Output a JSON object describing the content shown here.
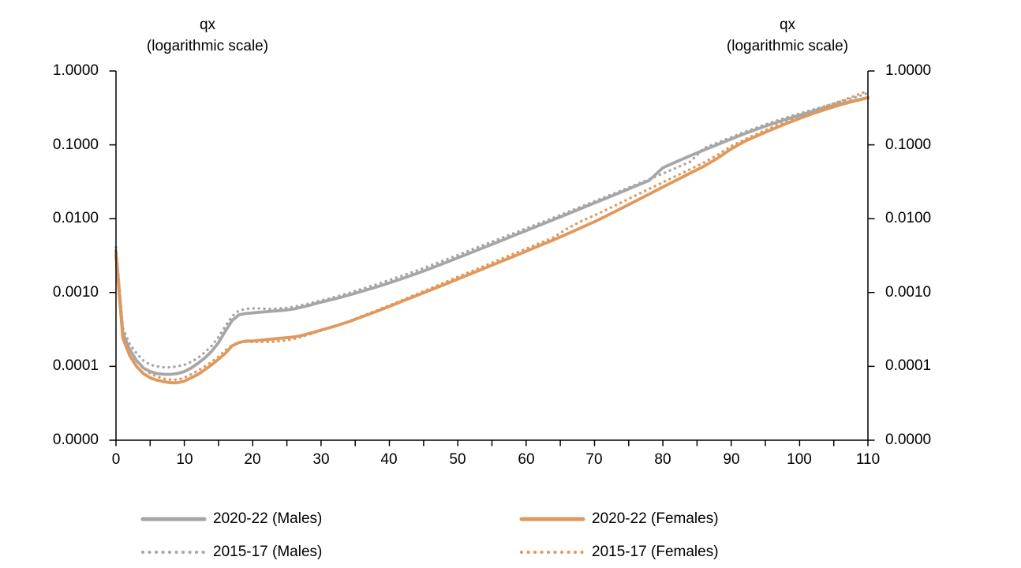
{
  "titles": {
    "left": {
      "line1": "qx",
      "line2": "(logarithmic scale)"
    },
    "right": {
      "line1": "qx",
      "line2": "(logarithmic scale)"
    }
  },
  "y_axis": {
    "labels": [
      "1.0000",
      "0.1000",
      "0.0100",
      "0.0010",
      "0.0001",
      "0.0000"
    ],
    "scale": "logarithmic"
  },
  "x_axis": {
    "labels": [
      "0",
      "10",
      "20",
      "30",
      "40",
      "50",
      "60",
      "70",
      "80",
      "90",
      "100",
      "110"
    ]
  },
  "legend": {
    "items": [
      {
        "label": "2020-22 (Males)",
        "color": "#A6A6A6",
        "line_style": "solid"
      },
      {
        "label": "2020-22 (Females)",
        "color": "#E0985C",
        "line_style": "solid"
      },
      {
        "label": "2015-17 (Males)",
        "color": "#A6A6A6",
        "line_style": "dotted"
      },
      {
        "label": "2015-17 (Females)",
        "color": "#E0985C",
        "line_style": "dotted"
      }
    ]
  },
  "chart_data": {
    "type": "line",
    "title": "",
    "xlabel": "",
    "ylabel": "qx (logarithmic scale)",
    "x_axis": {
      "min": 0,
      "max": 110,
      "major_step": 10,
      "minor_step": 5
    },
    "y_axis": {
      "scale": "log",
      "top": 1.0,
      "bottom": 1e-05,
      "tick_values": [
        1.0,
        0.1,
        0.01,
        0.001,
        0.0001,
        1e-05
      ]
    },
    "grid": false,
    "legend_position": "bottom",
    "series": [
      {
        "name": "2015-17 (Males)",
        "period": "2015-17",
        "sex": "male",
        "color": "#A6A6A6",
        "line_style": "dotted",
        "points": [
          [
            0,
            0.0041
          ],
          [
            1,
            0.00033
          ],
          [
            2,
            0.0002
          ],
          [
            3,
            0.00015
          ],
          [
            4,
            0.00012
          ],
          [
            5,
            0.000105
          ],
          [
            6,
            0.0001
          ],
          [
            7,
            9.7e-05
          ],
          [
            8,
            9.7e-05
          ],
          [
            9,
            0.0001
          ],
          [
            10,
            0.000105
          ],
          [
            11,
            0.000115
          ],
          [
            12,
            0.00013
          ],
          [
            13,
            0.000155
          ],
          [
            14,
            0.00019
          ],
          [
            15,
            0.00025
          ],
          [
            16,
            0.00035
          ],
          [
            17,
            0.00048
          ],
          [
            18,
            0.00057
          ],
          [
            19,
            0.0006
          ],
          [
            20,
            0.00061
          ],
          [
            21,
            0.00061
          ],
          [
            22,
            0.0006
          ],
          [
            23,
            0.0006
          ],
          [
            24,
            0.00061
          ],
          [
            25,
            0.00062
          ],
          [
            26,
            0.00064
          ],
          [
            27,
            0.00067
          ],
          [
            28,
            0.0007
          ],
          [
            29,
            0.00074
          ],
          [
            30,
            0.00078
          ],
          [
            32,
            0.00087
          ],
          [
            34,
            0.00098
          ],
          [
            36,
            0.00112
          ],
          [
            38,
            0.00128
          ],
          [
            40,
            0.00147
          ],
          [
            42,
            0.0017
          ],
          [
            44,
            0.00198
          ],
          [
            46,
            0.00232
          ],
          [
            48,
            0.00273
          ],
          [
            50,
            0.00322
          ],
          [
            52,
            0.0038
          ],
          [
            54,
            0.00448
          ],
          [
            56,
            0.00529
          ],
          [
            58,
            0.00625
          ],
          [
            60,
            0.00738
          ],
          [
            62,
            0.00872
          ],
          [
            64,
            0.0103
          ],
          [
            66,
            0.0122
          ],
          [
            68,
            0.0145
          ],
          [
            70,
            0.0172
          ],
          [
            72,
            0.0204
          ],
          [
            74,
            0.0242
          ],
          [
            76,
            0.0288
          ],
          [
            78,
            0.0343
          ],
          [
            80,
            0.0408
          ],
          [
            82,
            0.049
          ],
          [
            84,
            0.059
          ],
          [
            86,
            0.09
          ],
          [
            88,
            0.107
          ],
          [
            90,
            0.127
          ],
          [
            92,
            0.15
          ],
          [
            94,
            0.175
          ],
          [
            96,
            0.203
          ],
          [
            98,
            0.233
          ],
          [
            100,
            0.266
          ],
          [
            102,
            0.301
          ],
          [
            104,
            0.34
          ],
          [
            106,
            0.385
          ],
          [
            108,
            0.437
          ],
          [
            110,
            0.5
          ]
        ]
      },
      {
        "name": "2015-17 (Females)",
        "period": "2015-17",
        "sex": "female",
        "color": "#E0985C",
        "line_style": "dotted",
        "points": [
          [
            0,
            0.0036
          ],
          [
            1,
            0.00028
          ],
          [
            2,
            0.00017
          ],
          [
            3,
            0.00012
          ],
          [
            4,
            9.5e-05
          ],
          [
            5,
            8e-05
          ],
          [
            6,
            7.3e-05
          ],
          [
            7,
            6.8e-05
          ],
          [
            8,
            6.6e-05
          ],
          [
            9,
            6.6e-05
          ],
          [
            10,
            7e-05
          ],
          [
            11,
            7.8e-05
          ],
          [
            12,
            8.8e-05
          ],
          [
            13,
            0.0001
          ],
          [
            14,
            0.000115
          ],
          [
            15,
            0.000135
          ],
          [
            16,
            0.000165
          ],
          [
            17,
            0.000195
          ],
          [
            18,
            0.00021
          ],
          [
            19,
            0.000215
          ],
          [
            20,
            0.000215
          ],
          [
            21,
            0.000215
          ],
          [
            22,
            0.000215
          ],
          [
            23,
            0.000215
          ],
          [
            24,
            0.00022
          ],
          [
            25,
            0.000225
          ],
          [
            26,
            0.000235
          ],
          [
            27,
            0.00025
          ],
          [
            28,
            0.000265
          ],
          [
            29,
            0.000285
          ],
          [
            30,
            0.000305
          ],
          [
            32,
            0.00035
          ],
          [
            34,
            0.000405
          ],
          [
            36,
            0.00048
          ],
          [
            38,
            0.000565
          ],
          [
            40,
            0.00067
          ],
          [
            42,
            0.0008
          ],
          [
            44,
            0.000955
          ],
          [
            46,
            0.00114
          ],
          [
            48,
            0.00136
          ],
          [
            50,
            0.00163
          ],
          [
            52,
            0.00194
          ],
          [
            54,
            0.00231
          ],
          [
            56,
            0.00276
          ],
          [
            58,
            0.00329
          ],
          [
            60,
            0.00392
          ],
          [
            62,
            0.00467
          ],
          [
            64,
            0.00557
          ],
          [
            66,
            0.00734
          ],
          [
            68,
            0.0092
          ],
          [
            70,
            0.0111
          ],
          [
            72,
            0.0136
          ],
          [
            74,
            0.0167
          ],
          [
            76,
            0.0206
          ],
          [
            78,
            0.0253
          ],
          [
            80,
            0.0311
          ],
          [
            82,
            0.0381
          ],
          [
            84,
            0.0467
          ],
          [
            86,
            0.0575
          ],
          [
            88,
            0.073
          ],
          [
            90,
            0.096
          ],
          [
            92,
            0.119
          ],
          [
            94,
            0.144
          ],
          [
            96,
            0.173
          ],
          [
            98,
            0.207
          ],
          [
            100,
            0.246
          ],
          [
            102,
            0.289
          ],
          [
            104,
            0.337
          ],
          [
            106,
            0.391
          ],
          [
            108,
            0.458
          ],
          [
            110,
            0.54
          ]
        ]
      },
      {
        "name": "2020-22 (Males)",
        "period": "2020-22",
        "sex": "male",
        "color": "#A6A6A6",
        "line_style": "solid",
        "points": [
          [
            0,
            0.0037
          ],
          [
            1,
            0.00028
          ],
          [
            2,
            0.00017
          ],
          [
            3,
            0.00012
          ],
          [
            4,
            9.5e-05
          ],
          [
            5,
            8.5e-05
          ],
          [
            6,
            8e-05
          ],
          [
            7,
            7.8e-05
          ],
          [
            8,
            7.8e-05
          ],
          [
            9,
            8e-05
          ],
          [
            10,
            8.5e-05
          ],
          [
            11,
            9.5e-05
          ],
          [
            12,
            0.00011
          ],
          [
            13,
            0.00013
          ],
          [
            14,
            0.00016
          ],
          [
            15,
            0.00021
          ],
          [
            16,
            0.0003
          ],
          [
            17,
            0.00042
          ],
          [
            18,
            0.0005
          ],
          [
            19,
            0.00052
          ],
          [
            20,
            0.00053
          ],
          [
            21,
            0.00054
          ],
          [
            22,
            0.00055
          ],
          [
            23,
            0.00056
          ],
          [
            24,
            0.00057
          ],
          [
            25,
            0.00058
          ],
          [
            26,
            0.0006
          ],
          [
            27,
            0.00063
          ],
          [
            28,
            0.00066
          ],
          [
            29,
            0.0007
          ],
          [
            30,
            0.00074
          ],
          [
            32,
            0.00082
          ],
          [
            34,
            0.00092
          ],
          [
            36,
            0.00104
          ],
          [
            38,
            0.00118
          ],
          [
            40,
            0.00135
          ],
          [
            42,
            0.00156
          ],
          [
            44,
            0.00181
          ],
          [
            46,
            0.00212
          ],
          [
            48,
            0.0025
          ],
          [
            50,
            0.00295
          ],
          [
            52,
            0.00349
          ],
          [
            54,
            0.00413
          ],
          [
            56,
            0.00489
          ],
          [
            58,
            0.0058
          ],
          [
            60,
            0.00688
          ],
          [
            62,
            0.00817
          ],
          [
            64,
            0.00971
          ],
          [
            66,
            0.0115
          ],
          [
            68,
            0.0137
          ],
          [
            70,
            0.0163
          ],
          [
            72,
            0.0194
          ],
          [
            74,
            0.0231
          ],
          [
            76,
            0.0276
          ],
          [
            78,
            0.0329
          ],
          [
            80,
            0.049
          ],
          [
            82,
            0.059
          ],
          [
            84,
            0.071
          ],
          [
            86,
            0.085
          ],
          [
            88,
            0.101
          ],
          [
            90,
            0.12
          ],
          [
            92,
            0.142
          ],
          [
            94,
            0.166
          ],
          [
            96,
            0.193
          ],
          [
            98,
            0.221
          ],
          [
            100,
            0.252
          ],
          [
            102,
            0.285
          ],
          [
            104,
            0.32
          ],
          [
            106,
            0.358
          ],
          [
            108,
            0.397
          ],
          [
            110,
            0.436
          ]
        ]
      },
      {
        "name": "2020-22 (Females)",
        "period": "2020-22",
        "sex": "female",
        "color": "#E0985C",
        "line_style": "solid",
        "points": [
          [
            0,
            0.0032
          ],
          [
            1,
            0.00024
          ],
          [
            2,
            0.00014
          ],
          [
            3,
            0.0001
          ],
          [
            4,
            8e-05
          ],
          [
            5,
            7e-05
          ],
          [
            6,
            6.5e-05
          ],
          [
            7,
            6.2e-05
          ],
          [
            8,
            6e-05
          ],
          [
            9,
            6e-05
          ],
          [
            10,
            6.3e-05
          ],
          [
            11,
            7e-05
          ],
          [
            12,
            7.8e-05
          ],
          [
            13,
            9e-05
          ],
          [
            14,
            0.000105
          ],
          [
            15,
            0.000125
          ],
          [
            16,
            0.00015
          ],
          [
            17,
            0.00019
          ],
          [
            18,
            0.00021
          ],
          [
            19,
            0.00022
          ],
          [
            20,
            0.00022
          ],
          [
            21,
            0.000225
          ],
          [
            22,
            0.00023
          ],
          [
            23,
            0.000235
          ],
          [
            24,
            0.00024
          ],
          [
            25,
            0.000245
          ],
          [
            26,
            0.00025
          ],
          [
            27,
            0.00026
          ],
          [
            28,
            0.000275
          ],
          [
            29,
            0.00029
          ],
          [
            30,
            0.00031
          ],
          [
            32,
            0.00035
          ],
          [
            34,
            0.0004
          ],
          [
            36,
            0.00047
          ],
          [
            38,
            0.00055
          ],
          [
            40,
            0.00065
          ],
          [
            42,
            0.00077
          ],
          [
            44,
            0.00091
          ],
          [
            46,
            0.00108
          ],
          [
            48,
            0.00128
          ],
          [
            50,
            0.00152
          ],
          [
            52,
            0.00181
          ],
          [
            54,
            0.00215
          ],
          [
            56,
            0.00256
          ],
          [
            58,
            0.00304
          ],
          [
            60,
            0.00362
          ],
          [
            62,
            0.00432
          ],
          [
            64,
            0.00516
          ],
          [
            66,
            0.0062
          ],
          [
            68,
            0.0075
          ],
          [
            70,
            0.0091
          ],
          [
            72,
            0.0112
          ],
          [
            74,
            0.0139
          ],
          [
            76,
            0.0173
          ],
          [
            78,
            0.0215
          ],
          [
            80,
            0.0268
          ],
          [
            82,
            0.0333
          ],
          [
            84,
            0.0413
          ],
          [
            86,
            0.0512
          ],
          [
            88,
            0.0658
          ],
          [
            90,
            0.088
          ],
          [
            92,
            0.112
          ],
          [
            94,
            0.135
          ],
          [
            96,
            0.162
          ],
          [
            98,
            0.193
          ],
          [
            100,
            0.228
          ],
          [
            102,
            0.266
          ],
          [
            104,
            0.306
          ],
          [
            106,
            0.349
          ],
          [
            108,
            0.392
          ],
          [
            110,
            0.432
          ]
        ]
      }
    ]
  }
}
